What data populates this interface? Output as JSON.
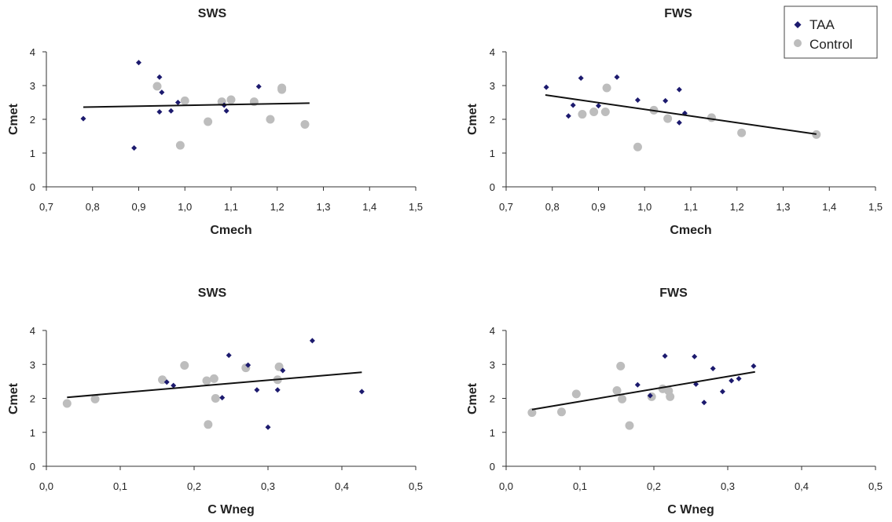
{
  "colors": {
    "taa": "#1c1a6e",
    "control": "#bdbdbd",
    "trend": "#111111",
    "axis": "#333333"
  },
  "legend": {
    "placement": "top-right",
    "items": [
      {
        "label": "TAA",
        "marker": "diamond",
        "color": "#1c1a6e"
      },
      {
        "label": "Control",
        "marker": "circle",
        "color": "#bdbdbd"
      }
    ]
  },
  "chart_data": [
    {
      "type": "scatter",
      "title": "SWS",
      "xlabel": "Cmech",
      "ylabel": "Cmet",
      "xlim": [
        0.7,
        1.5
      ],
      "ylim": [
        0,
        4
      ],
      "xticks": [
        0.7,
        0.8,
        0.9,
        1.0,
        1.1,
        1.2,
        1.3,
        1.4,
        1.5
      ],
      "xtick_labels": [
        "0,7",
        "0,8",
        "0,9",
        "1,0",
        "1,1",
        "1,2",
        "1,3",
        "1,4",
        "1,5"
      ],
      "yticks": [
        0,
        1,
        2,
        3,
        4
      ],
      "ytick_labels": [
        "0",
        "1",
        "2",
        "3",
        "4"
      ],
      "grid": false,
      "series": [
        {
          "name": "TAA",
          "marker": "diamond",
          "points": [
            [
              0.78,
              2.02
            ],
            [
              0.89,
              1.15
            ],
            [
              0.9,
              3.68
            ],
            [
              0.945,
              3.25
            ],
            [
              0.95,
              2.8
            ],
            [
              0.945,
              2.22
            ],
            [
              0.97,
              2.25
            ],
            [
              0.985,
              2.5
            ],
            [
              1.085,
              2.42
            ],
            [
              1.09,
              2.25
            ],
            [
              1.16,
              2.97
            ]
          ]
        },
        {
          "name": "Control",
          "marker": "circle",
          "points": [
            [
              0.94,
              2.98
            ],
            [
              0.99,
              1.23
            ],
            [
              1.0,
              2.55
            ],
            [
              1.05,
              1.93
            ],
            [
              1.08,
              2.52
            ],
            [
              1.1,
              2.58
            ],
            [
              1.15,
              2.52
            ],
            [
              1.185,
              2.0
            ],
            [
              1.21,
              2.88
            ],
            [
              1.21,
              2.93
            ],
            [
              1.26,
              1.85
            ]
          ]
        }
      ],
      "trendline": {
        "x": [
          0.78,
          1.27
        ],
        "y": [
          2.36,
          2.48
        ]
      }
    },
    {
      "type": "scatter",
      "title": "FWS",
      "xlabel": "Cmech",
      "ylabel": "Cmet",
      "xlim": [
        0.7,
        1.5
      ],
      "ylim": [
        0,
        4
      ],
      "xticks": [
        0.7,
        0.8,
        0.9,
        1.0,
        1.1,
        1.2,
        1.3,
        1.4,
        1.5
      ],
      "xtick_labels": [
        "0,7",
        "0,8",
        "0,9",
        "1,0",
        "1,1",
        "1,2",
        "1,3",
        "1,4",
        "1,5"
      ],
      "yticks": [
        0,
        1,
        2,
        3,
        4
      ],
      "ytick_labels": [
        "0",
        "1",
        "2",
        "3",
        "4"
      ],
      "grid": false,
      "series": [
        {
          "name": "TAA",
          "marker": "diamond",
          "points": [
            [
              0.787,
              2.95
            ],
            [
              0.835,
              2.1
            ],
            [
              0.845,
              2.42
            ],
            [
              0.862,
              3.22
            ],
            [
              0.9,
              2.4
            ],
            [
              0.94,
              3.25
            ],
            [
              0.985,
              2.57
            ],
            [
              1.045,
              2.55
            ],
            [
              1.075,
              2.88
            ],
            [
              1.075,
              1.9
            ],
            [
              1.087,
              2.18
            ]
          ]
        },
        {
          "name": "Control",
          "marker": "circle",
          "points": [
            [
              0.865,
              2.15
            ],
            [
              0.89,
              2.22
            ],
            [
              0.915,
              2.22
            ],
            [
              0.918,
              2.93
            ],
            [
              0.985,
              1.18
            ],
            [
              1.02,
              2.27
            ],
            [
              1.05,
              2.02
            ],
            [
              1.145,
              2.05
            ],
            [
              1.21,
              1.6
            ],
            [
              1.372,
              1.55
            ]
          ]
        }
      ],
      "trendline": {
        "x": [
          0.785,
          1.372
        ],
        "y": [
          2.72,
          1.56
        ]
      }
    },
    {
      "type": "scatter",
      "title": "SWS",
      "xlabel": "C Wneg",
      "ylabel": "Cmet",
      "xlim": [
        0.0,
        0.5
      ],
      "ylim": [
        0,
        4
      ],
      "xticks": [
        0.0,
        0.1,
        0.2,
        0.3,
        0.4,
        0.5
      ],
      "xtick_labels": [
        "0,0",
        "0,1",
        "0,2",
        "0,3",
        "0,4",
        "0,5"
      ],
      "yticks": [
        0,
        1,
        2,
        3,
        4
      ],
      "ytick_labels": [
        "0",
        "1",
        "2",
        "3",
        "4"
      ],
      "grid": false,
      "series": [
        {
          "name": "TAA",
          "marker": "diamond",
          "points": [
            [
              0.163,
              2.48
            ],
            [
              0.172,
              2.38
            ],
            [
              0.238,
              2.02
            ],
            [
              0.247,
              3.27
            ],
            [
              0.273,
              2.98
            ],
            [
              0.285,
              2.25
            ],
            [
              0.3,
              1.15
            ],
            [
              0.313,
              2.25
            ],
            [
              0.32,
              2.82
            ],
            [
              0.36,
              3.7
            ],
            [
              0.427,
              2.2
            ]
          ]
        },
        {
          "name": "Control",
          "marker": "circle",
          "points": [
            [
              0.028,
              1.85
            ],
            [
              0.066,
              1.98
            ],
            [
              0.157,
              2.55
            ],
            [
              0.187,
              2.97
            ],
            [
              0.217,
              2.52
            ],
            [
              0.219,
              1.23
            ],
            [
              0.227,
              2.58
            ],
            [
              0.229,
              2.0
            ],
            [
              0.27,
              2.9
            ],
            [
              0.313,
              2.55
            ],
            [
              0.315,
              2.93
            ]
          ]
        }
      ],
      "trendline": {
        "x": [
          0.028,
          0.427
        ],
        "y": [
          2.03,
          2.77
        ]
      }
    },
    {
      "type": "scatter",
      "title": "FWS",
      "xlabel": "C Wneg",
      "ylabel": "Cmet",
      "xlim": [
        0.0,
        0.5
      ],
      "ylim": [
        0,
        4
      ],
      "xticks": [
        0.0,
        0.1,
        0.2,
        0.3,
        0.4,
        0.5
      ],
      "xtick_labels": [
        "0,0",
        "0,1",
        "0,2",
        "0,3",
        "0,4",
        "0,5"
      ],
      "yticks": [
        0,
        1,
        2,
        3,
        4
      ],
      "ytick_labels": [
        "0",
        "1",
        "2",
        "3",
        "4"
      ],
      "grid": false,
      "series": [
        {
          "name": "TAA",
          "marker": "diamond",
          "points": [
            [
              0.178,
              2.4
            ],
            [
              0.195,
              2.08
            ],
            [
              0.215,
              3.25
            ],
            [
              0.255,
              3.23
            ],
            [
              0.257,
              2.42
            ],
            [
              0.268,
              1.88
            ],
            [
              0.28,
              2.88
            ],
            [
              0.293,
              2.2
            ],
            [
              0.305,
              2.52
            ],
            [
              0.315,
              2.58
            ],
            [
              0.335,
              2.95
            ]
          ]
        },
        {
          "name": "Control",
          "marker": "circle",
          "points": [
            [
              0.035,
              1.58
            ],
            [
              0.075,
              1.6
            ],
            [
              0.095,
              2.13
            ],
            [
              0.15,
              2.23
            ],
            [
              0.155,
              2.95
            ],
            [
              0.157,
              1.98
            ],
            [
              0.167,
              1.2
            ],
            [
              0.197,
              2.05
            ],
            [
              0.212,
              2.28
            ],
            [
              0.22,
              2.22
            ],
            [
              0.222,
              2.05
            ]
          ]
        }
      ],
      "trendline": {
        "x": [
          0.035,
          0.337
        ],
        "y": [
          1.67,
          2.78
        ]
      }
    }
  ]
}
